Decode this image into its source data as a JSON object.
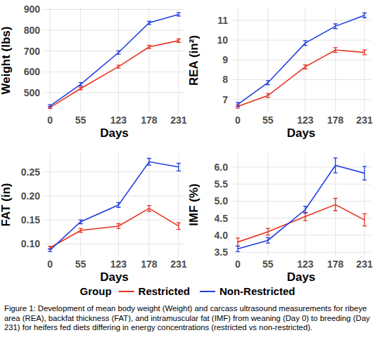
{
  "chart_data": [
    {
      "type": "line",
      "y_label": "Weight (lbs)",
      "x_label": "Days",
      "x": [
        0,
        55,
        123,
        178,
        231
      ],
      "xlim": [
        -11.5,
        242.5
      ],
      "xticks": [
        0,
        55,
        123,
        178,
        231
      ],
      "ylim": [
        405,
        905
      ],
      "yticks": [
        500,
        600,
        700,
        800,
        900
      ],
      "grid": true,
      "series": [
        {
          "name": "Restricted",
          "color": "#e8321e",
          "values": [
            428,
            520,
            625,
            720,
            750
          ],
          "errors": [
            5,
            6,
            7,
            8,
            8
          ]
        },
        {
          "name": "Non-Restricted",
          "color": "#1f3fe0",
          "values": [
            436,
            540,
            693,
            836,
            876
          ],
          "errors": [
            6,
            8,
            8,
            8,
            8
          ]
        }
      ]
    },
    {
      "type": "line",
      "y_label": "REA (in²)",
      "x_label": "Days",
      "x": [
        0,
        55,
        123,
        178,
        231
      ],
      "xlim": [
        -11.5,
        242.5
      ],
      "xticks": [
        0,
        55,
        123,
        178,
        231
      ],
      "ylim": [
        6.35,
        11.6
      ],
      "yticks": [
        7,
        8,
        9,
        10,
        11
      ],
      "grid": true,
      "series": [
        {
          "name": "Restricted",
          "color": "#e8321e",
          "values": [
            6.65,
            7.2,
            8.65,
            9.5,
            9.38
          ],
          "errors": [
            0.08,
            0.1,
            0.1,
            0.12,
            0.12
          ]
        },
        {
          "name": "Non-Restricted",
          "color": "#1f3fe0",
          "values": [
            6.75,
            7.85,
            9.85,
            10.7,
            11.25
          ],
          "errors": [
            0.1,
            0.1,
            0.12,
            0.12,
            0.12
          ]
        }
      ]
    },
    {
      "type": "line",
      "y_label": "FAT (in)",
      "x_label": "Days",
      "x": [
        0,
        55,
        123,
        178,
        231
      ],
      "xlim": [
        -11.5,
        242.5
      ],
      "xticks": [
        0,
        55,
        123,
        178,
        231
      ],
      "ylim": [
        0.074,
        0.289
      ],
      "yticks": [
        {
          "value": 0.1,
          "label": "0.10"
        },
        {
          "value": 0.15,
          "label": "0.15"
        },
        {
          "value": 0.2,
          "label": "0.20"
        },
        {
          "value": 0.25,
          "label": "0.25"
        }
      ],
      "grid": true,
      "series": [
        {
          "name": "Restricted",
          "color": "#e8321e",
          "values": [
            0.092,
            0.128,
            0.137,
            0.174,
            0.137
          ],
          "errors": [
            0.003,
            0.004,
            0.005,
            0.006,
            0.007
          ]
        },
        {
          "name": "Non-Restricted",
          "color": "#1f3fe0",
          "values": [
            0.087,
            0.146,
            0.181,
            0.271,
            0.26
          ],
          "errors": [
            0.003,
            0.004,
            0.005,
            0.007,
            0.008
          ]
        }
      ]
    },
    {
      "type": "line",
      "y_label": "IMF (%)",
      "x_label": "Days",
      "x": [
        0,
        55,
        123,
        178,
        231
      ],
      "xlim": [
        -11.5,
        242.5
      ],
      "xticks": [
        0,
        55,
        123,
        178,
        231
      ],
      "ylim": [
        3.38,
        6.41
      ],
      "yticks": [
        3.5,
        {
          "value": 4,
          "label": "4.0"
        },
        4.5,
        {
          "value": 5,
          "label": "5.0"
        },
        5.5,
        {
          "value": 6,
          "label": "6.0"
        }
      ],
      "grid": true,
      "series": [
        {
          "name": "Restricted",
          "color": "#e8321e",
          "values": [
            3.8,
            4.1,
            4.55,
            4.9,
            4.45
          ],
          "errors": [
            0.12,
            0.1,
            0.12,
            0.18,
            0.18
          ]
        },
        {
          "name": "Non-Restricted",
          "color": "#1f3fe0",
          "values": [
            3.6,
            3.85,
            4.75,
            6.05,
            5.82
          ],
          "errors": [
            0.08,
            0.08,
            0.1,
            0.22,
            0.2
          ]
        }
      ]
    }
  ],
  "figure": {
    "legend_title": "Group",
    "caption": "Figure 1: Development of mean body weight (Weight) and carcass ultrasound measurements for ribeye area (REA), backfat thickness (FAT), and intramuscular fat (IMF) from weaning (Day 0) to breeding (Day 231) for heifers fed diets differing in energy concentrations (restricted vs non-restricted)."
  }
}
